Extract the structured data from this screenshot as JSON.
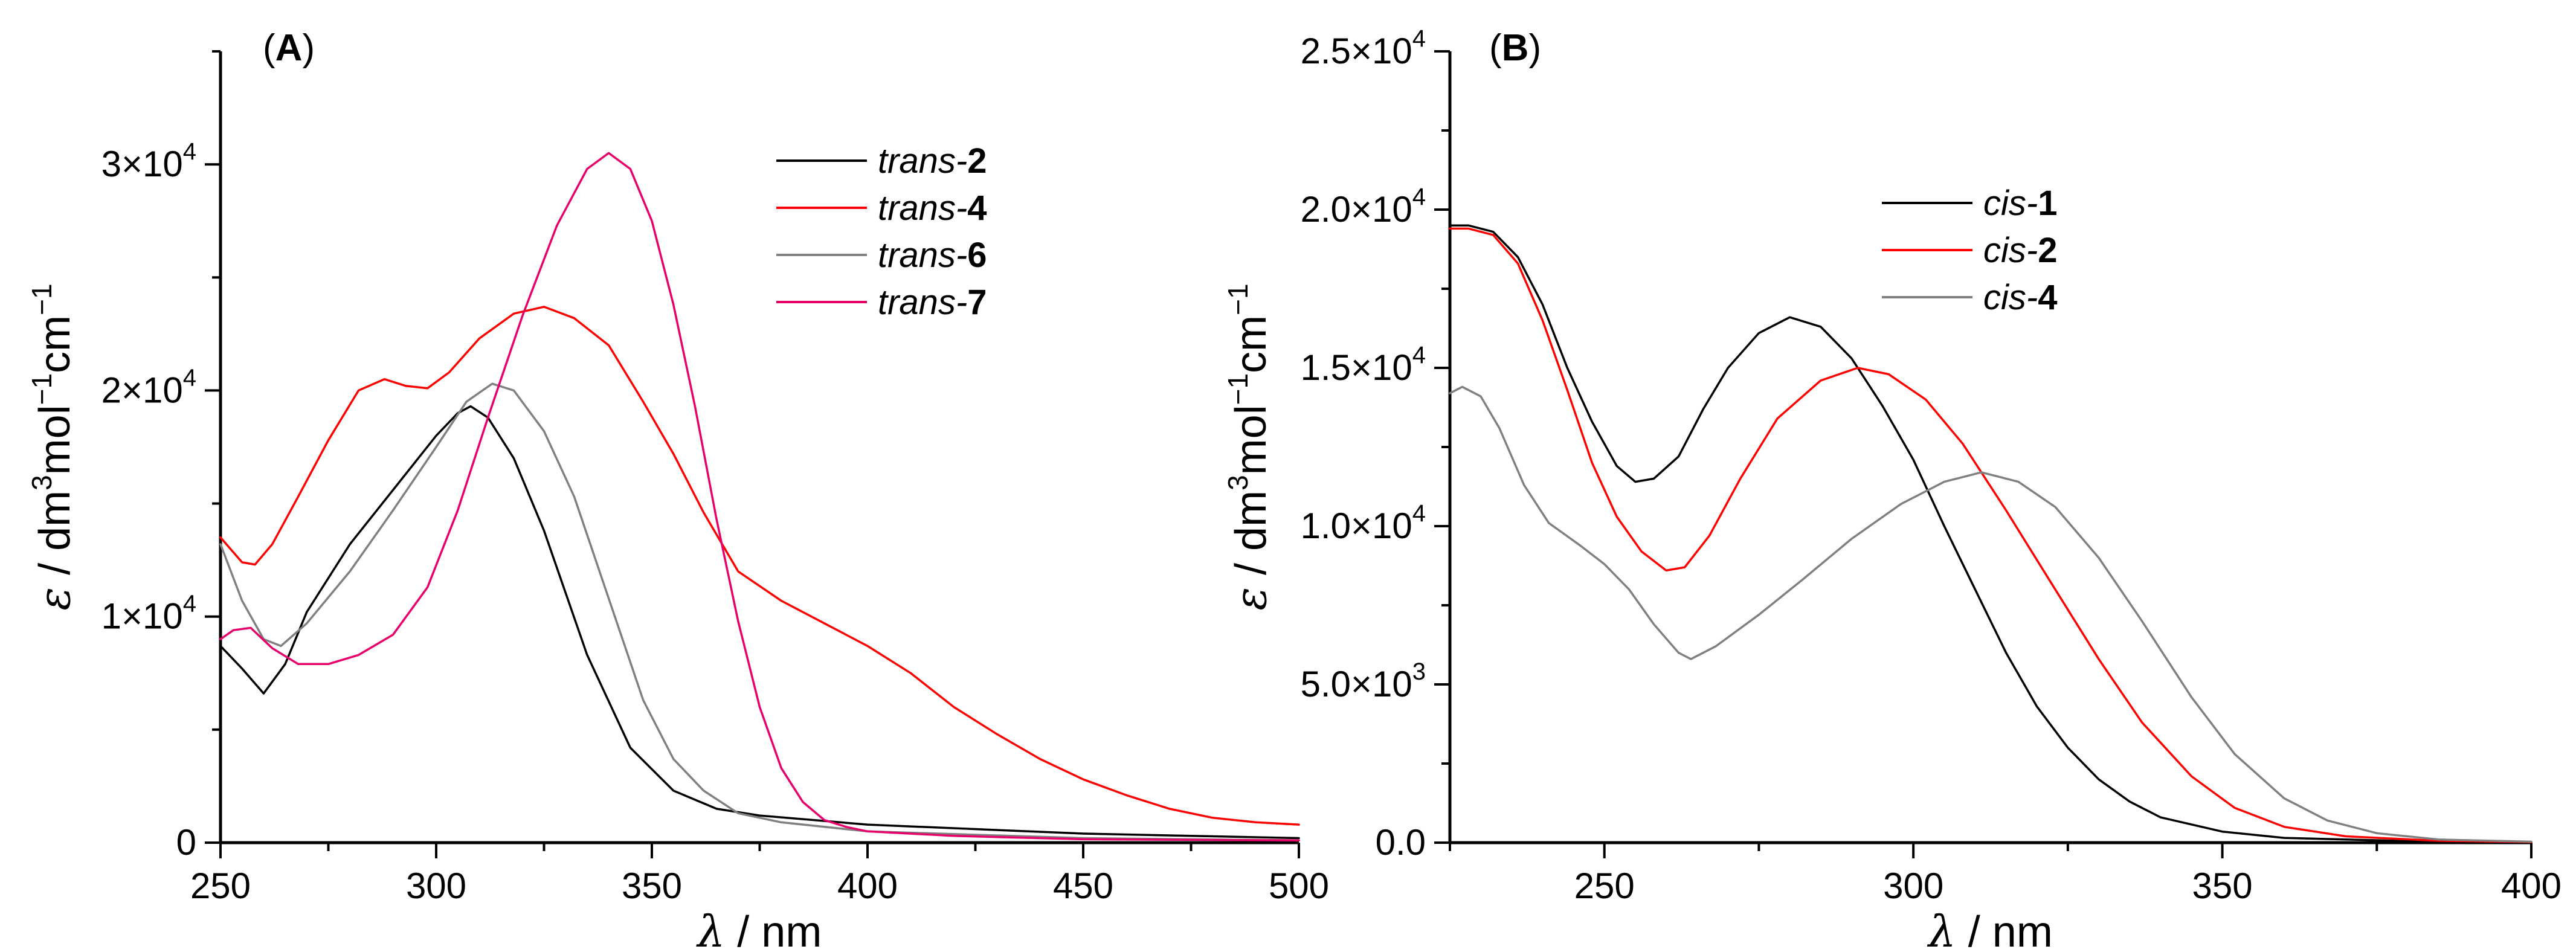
{
  "chart_data": [
    {
      "panel_label": "A",
      "type": "line",
      "xlabel": {
        "symbol": "λ",
        "unit": " / nm"
      },
      "ylabel": {
        "symbol": "ε",
        "pre": " / dm",
        "sup1": "3",
        "mid1": "mol",
        "sup2": "−1",
        "mid2": "cm",
        "sup3": "−1"
      },
      "xlim": [
        250,
        500
      ],
      "ylim": [
        0,
        35000
      ],
      "x_ticks": [
        250,
        300,
        350,
        400,
        450,
        500
      ],
      "y_ticks": [
        {
          "value": 0,
          "mant": "0",
          "exp": ""
        },
        {
          "value": 10000,
          "mant": "1×10",
          "exp": "4"
        },
        {
          "value": 20000,
          "mant": "2×10",
          "exp": "4"
        },
        {
          "value": 30000,
          "mant": "3×10",
          "exp": "4"
        }
      ],
      "legend_position": "top-right",
      "series": [
        {
          "name_prefix": "trans-",
          "name_bold": "2",
          "color": "#000000",
          "points": [
            [
              250,
              8700
            ],
            [
              255,
              7700
            ],
            [
              260,
              6600
            ],
            [
              265,
              7900
            ],
            [
              270,
              10200
            ],
            [
              280,
              13200
            ],
            [
              290,
              15600
            ],
            [
              300,
              18000
            ],
            [
              305,
              19000
            ],
            [
              308,
              19300
            ],
            [
              312,
              18800
            ],
            [
              318,
              17000
            ],
            [
              325,
              13800
            ],
            [
              335,
              8300
            ],
            [
              345,
              4200
            ],
            [
              355,
              2300
            ],
            [
              365,
              1500
            ],
            [
              375,
              1200
            ],
            [
              400,
              800
            ],
            [
              450,
              400
            ],
            [
              500,
              200
            ]
          ]
        },
        {
          "name_prefix": "trans-",
          "name_bold": "4",
          "color": "#ff0000",
          "points": [
            [
              250,
              13500
            ],
            [
              255,
              12400
            ],
            [
              258,
              12300
            ],
            [
              262,
              13200
            ],
            [
              268,
              15300
            ],
            [
              275,
              17800
            ],
            [
              282,
              20000
            ],
            [
              288,
              20500
            ],
            [
              293,
              20200
            ],
            [
              298,
              20100
            ],
            [
              303,
              20800
            ],
            [
              310,
              22300
            ],
            [
              318,
              23400
            ],
            [
              325,
              23700
            ],
            [
              332,
              23200
            ],
            [
              340,
              22000
            ],
            [
              348,
              19500
            ],
            [
              355,
              17200
            ],
            [
              362,
              14600
            ],
            [
              370,
              12000
            ],
            [
              380,
              10700
            ],
            [
              390,
              9700
            ],
            [
              400,
              8700
            ],
            [
              410,
              7500
            ],
            [
              420,
              6000
            ],
            [
              430,
              4800
            ],
            [
              440,
              3700
            ],
            [
              450,
              2800
            ],
            [
              460,
              2100
            ],
            [
              470,
              1500
            ],
            [
              480,
              1100
            ],
            [
              490,
              900
            ],
            [
              500,
              800
            ]
          ]
        },
        {
          "name_prefix": "trans-",
          "name_bold": "6",
          "color": "#808080",
          "points": [
            [
              250,
              13200
            ],
            [
              255,
              10700
            ],
            [
              260,
              9000
            ],
            [
              264,
              8700
            ],
            [
              270,
              9700
            ],
            [
              280,
              12000
            ],
            [
              290,
              14700
            ],
            [
              300,
              17500
            ],
            [
              307,
              19500
            ],
            [
              313,
              20300
            ],
            [
              318,
              20000
            ],
            [
              325,
              18200
            ],
            [
              332,
              15300
            ],
            [
              340,
              10800
            ],
            [
              348,
              6300
            ],
            [
              355,
              3700
            ],
            [
              362,
              2300
            ],
            [
              370,
              1300
            ],
            [
              380,
              900
            ],
            [
              400,
              500
            ],
            [
              450,
              200
            ],
            [
              500,
              100
            ]
          ]
        },
        {
          "name_prefix": "trans-",
          "name_bold": "7",
          "color": "#e8006a",
          "points": [
            [
              250,
              9000
            ],
            [
              253,
              9400
            ],
            [
              257,
              9500
            ],
            [
              262,
              8600
            ],
            [
              268,
              7900
            ],
            [
              275,
              7900
            ],
            [
              282,
              8300
            ],
            [
              290,
              9200
            ],
            [
              298,
              11300
            ],
            [
              305,
              14700
            ],
            [
              312,
              18800
            ],
            [
              320,
              23300
            ],
            [
              328,
              27300
            ],
            [
              335,
              29800
            ],
            [
              340,
              30500
            ],
            [
              345,
              29800
            ],
            [
              350,
              27500
            ],
            [
              355,
              23800
            ],
            [
              360,
              19300
            ],
            [
              365,
              14300
            ],
            [
              370,
              9800
            ],
            [
              375,
              6000
            ],
            [
              380,
              3300
            ],
            [
              385,
              1800
            ],
            [
              390,
              1000
            ],
            [
              395,
              700
            ],
            [
              400,
              500
            ],
            [
              420,
              300
            ],
            [
              450,
              150
            ],
            [
              500,
              100
            ]
          ]
        }
      ]
    },
    {
      "panel_label": "B",
      "type": "line",
      "xlabel": {
        "symbol": "λ",
        "unit": " / nm"
      },
      "ylabel": {
        "symbol": "ε",
        "pre": " / dm",
        "sup1": "3",
        "mid1": "mol",
        "sup2": "−1",
        "mid2": "cm",
        "sup3": "−1"
      },
      "xlim": [
        225,
        400
      ],
      "ylim": [
        0,
        25000
      ],
      "x_ticks": [
        250,
        300,
        350,
        400
      ],
      "y_ticks": [
        {
          "value": 0,
          "mant": "0.0",
          "exp": ""
        },
        {
          "value": 5000,
          "mant": "5.0×10",
          "exp": "3"
        },
        {
          "value": 10000,
          "mant": "1.0×10",
          "exp": "4"
        },
        {
          "value": 15000,
          "mant": "1.5×10",
          "exp": "4"
        },
        {
          "value": 20000,
          "mant": "2.0×10",
          "exp": "4"
        },
        {
          "value": 25000,
          "mant": "2.5×10",
          "exp": "4"
        }
      ],
      "legend_position": "top-right",
      "series": [
        {
          "name_prefix": "cis-",
          "name_bold": "1",
          "color": "#000000",
          "points": [
            [
              225,
              19500
            ],
            [
              228,
              19500
            ],
            [
              232,
              19300
            ],
            [
              236,
              18500
            ],
            [
              240,
              17000
            ],
            [
              244,
              15000
            ],
            [
              248,
              13300
            ],
            [
              252,
              11900
            ],
            [
              255,
              11400
            ],
            [
              258,
              11500
            ],
            [
              262,
              12200
            ],
            [
              266,
              13700
            ],
            [
              270,
              15000
            ],
            [
              275,
              16100
            ],
            [
              280,
              16600
            ],
            [
              285,
              16300
            ],
            [
              290,
              15300
            ],
            [
              295,
              13800
            ],
            [
              300,
              12100
            ],
            [
              305,
              10000
            ],
            [
              310,
              8000
            ],
            [
              315,
              6000
            ],
            [
              320,
              4300
            ],
            [
              325,
              3000
            ],
            [
              330,
              2000
            ],
            [
              335,
              1300
            ],
            [
              340,
              800
            ],
            [
              350,
              350
            ],
            [
              360,
              150
            ],
            [
              380,
              50
            ],
            [
              400,
              20
            ]
          ]
        },
        {
          "name_prefix": "cis-",
          "name_bold": "2",
          "color": "#ff0000",
          "points": [
            [
              225,
              19400
            ],
            [
              228,
              19400
            ],
            [
              232,
              19200
            ],
            [
              236,
              18300
            ],
            [
              240,
              16500
            ],
            [
              244,
              14300
            ],
            [
              248,
              12000
            ],
            [
              252,
              10300
            ],
            [
              256,
              9200
            ],
            [
              260,
              8600
            ],
            [
              263,
              8700
            ],
            [
              267,
              9700
            ],
            [
              272,
              11500
            ],
            [
              278,
              13400
            ],
            [
              285,
              14600
            ],
            [
              291,
              15000
            ],
            [
              296,
              14800
            ],
            [
              302,
              14000
            ],
            [
              308,
              12600
            ],
            [
              315,
              10500
            ],
            [
              322,
              8300
            ],
            [
              330,
              5800
            ],
            [
              337,
              3800
            ],
            [
              345,
              2100
            ],
            [
              352,
              1100
            ],
            [
              360,
              500
            ],
            [
              370,
              200
            ],
            [
              385,
              60
            ],
            [
              400,
              20
            ]
          ]
        },
        {
          "name_prefix": "cis-",
          "name_bold": "4",
          "color": "#808080",
          "points": [
            [
              225,
              14200
            ],
            [
              227,
              14400
            ],
            [
              230,
              14100
            ],
            [
              233,
              13100
            ],
            [
              237,
              11300
            ],
            [
              241,
              10100
            ],
            [
              246,
              9400
            ],
            [
              250,
              8800
            ],
            [
              254,
              8000
            ],
            [
              258,
              6900
            ],
            [
              262,
              6000
            ],
            [
              264,
              5800
            ],
            [
              268,
              6200
            ],
            [
              275,
              7200
            ],
            [
              282,
              8300
            ],
            [
              290,
              9600
            ],
            [
              298,
              10700
            ],
            [
              305,
              11400
            ],
            [
              311,
              11700
            ],
            [
              317,
              11400
            ],
            [
              323,
              10600
            ],
            [
              330,
              9000
            ],
            [
              337,
              7000
            ],
            [
              345,
              4600
            ],
            [
              352,
              2800
            ],
            [
              360,
              1400
            ],
            [
              367,
              700
            ],
            [
              375,
              300
            ],
            [
              385,
              100
            ],
            [
              400,
              30
            ]
          ]
        }
      ]
    }
  ]
}
